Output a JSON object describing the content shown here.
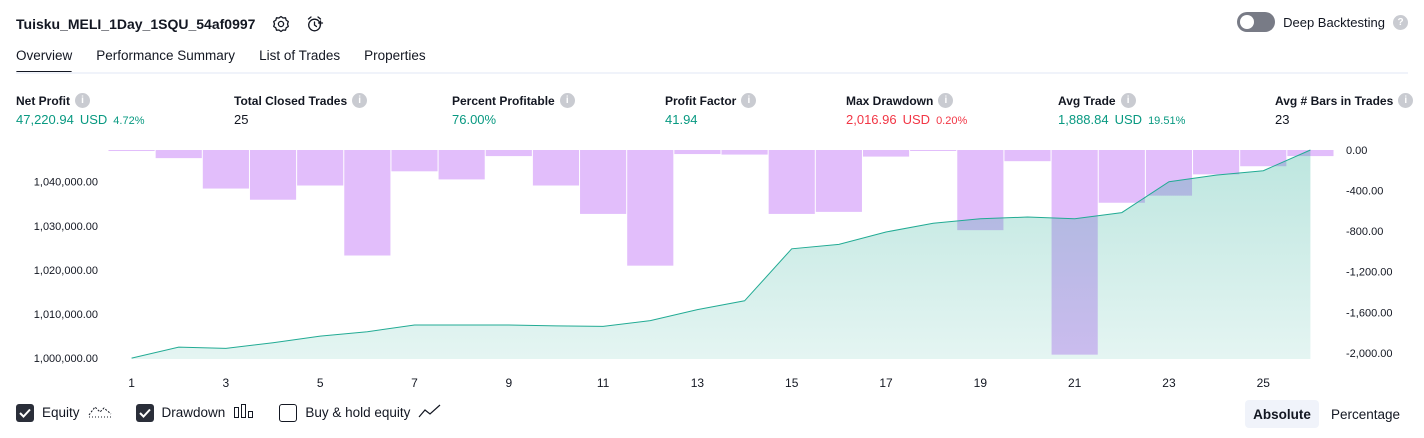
{
  "header": {
    "strategy_name": "Tuisku_MELI_1Day_1SQU_54af0997",
    "deep_backtesting_label": "Deep Backtesting"
  },
  "tabs": [
    {
      "label": "Overview",
      "active": true
    },
    {
      "label": "Performance Summary",
      "active": false
    },
    {
      "label": "List of Trades",
      "active": false
    },
    {
      "label": "Properties",
      "active": false
    }
  ],
  "metrics": [
    {
      "label": "Net Profit",
      "value": "47,220.94",
      "unit": "USD",
      "pct": "4.72%",
      "color": "green"
    },
    {
      "label": "Total Closed Trades",
      "value": "25",
      "unit": "",
      "pct": "",
      "color": "dark"
    },
    {
      "label": "Percent Profitable",
      "value": "76.00%",
      "unit": "",
      "pct": "",
      "color": "green"
    },
    {
      "label": "Profit Factor",
      "value": "41.94",
      "unit": "",
      "pct": "",
      "color": "green"
    },
    {
      "label": "Max Drawdown",
      "value": "2,016.96",
      "unit": "USD",
      "pct": "0.20%",
      "color": "red"
    },
    {
      "label": "Avg Trade",
      "value": "1,888.84",
      "unit": "USD",
      "pct": "19.51%",
      "color": "green"
    },
    {
      "label": "Avg # Bars in Trades",
      "value": "23",
      "unit": "",
      "pct": "",
      "color": "dark"
    }
  ],
  "chart_data": {
    "type": "line",
    "x": [
      1,
      2,
      3,
      4,
      5,
      6,
      7,
      8,
      9,
      10,
      11,
      12,
      13,
      14,
      15,
      16,
      17,
      18,
      19,
      20,
      21,
      22,
      23,
      24,
      25,
      26
    ],
    "x_tick_labels": [
      "1",
      "3",
      "5",
      "7",
      "9",
      "11",
      "13",
      "15",
      "17",
      "19",
      "21",
      "23",
      "25"
    ],
    "left_axis": {
      "ticks": [
        1000000,
        1010000,
        1020000,
        1030000,
        1040000
      ],
      "tick_labels": [
        "1,000,000.00",
        "1,010,000.00",
        "1,020,000.00",
        "1,030,000.00",
        "1,040,000.00"
      ],
      "range": [
        999800,
        1047200
      ]
    },
    "right_axis": {
      "ticks": [
        0,
        -400,
        -800,
        -1200,
        -1600,
        -2000
      ],
      "tick_labels": [
        "0.00",
        "-400.00",
        "-800.00",
        "-1,200.00",
        "-1,600.00",
        "-2,000.00"
      ],
      "range": [
        -2060,
        0
      ]
    },
    "series": [
      {
        "key": "equity",
        "axis": "left",
        "color": "#22ab94",
        "values": [
          1000000,
          1002500,
          1002200,
          1003500,
          1005000,
          1006000,
          1007500,
          1007500,
          1007500,
          1007300,
          1007200,
          1008500,
          1011000,
          1013000,
          1024800,
          1025800,
          1028600,
          1030600,
          1031600,
          1032000,
          1031600,
          1033000,
          1040000,
          1041500,
          1042500,
          1047200
        ]
      },
      {
        "key": "drawdown",
        "axis": "right",
        "color": "#ce93f8",
        "values": [
          -10,
          -80,
          -380,
          -490,
          -350,
          -1040,
          -210,
          -290,
          -60,
          -350,
          -630,
          -1140,
          -40,
          -45,
          -630,
          -610,
          -65,
          -5,
          -790,
          -110,
          -2016.96,
          -520,
          -450,
          -240,
          -160,
          -60
        ]
      }
    ],
    "grid": false
  },
  "legend": {
    "items": [
      {
        "label": "Equity",
        "checked": true,
        "icon": "equity-line-icon"
      },
      {
        "label": "Drawdown",
        "checked": true,
        "icon": "drawdown-bars-icon"
      },
      {
        "label": "Buy & hold equity",
        "checked": false,
        "icon": "buy-hold-line-icon"
      }
    ]
  },
  "mode": {
    "options": [
      {
        "label": "Absolute",
        "active": true
      },
      {
        "label": "Percentage",
        "active": false
      }
    ]
  }
}
